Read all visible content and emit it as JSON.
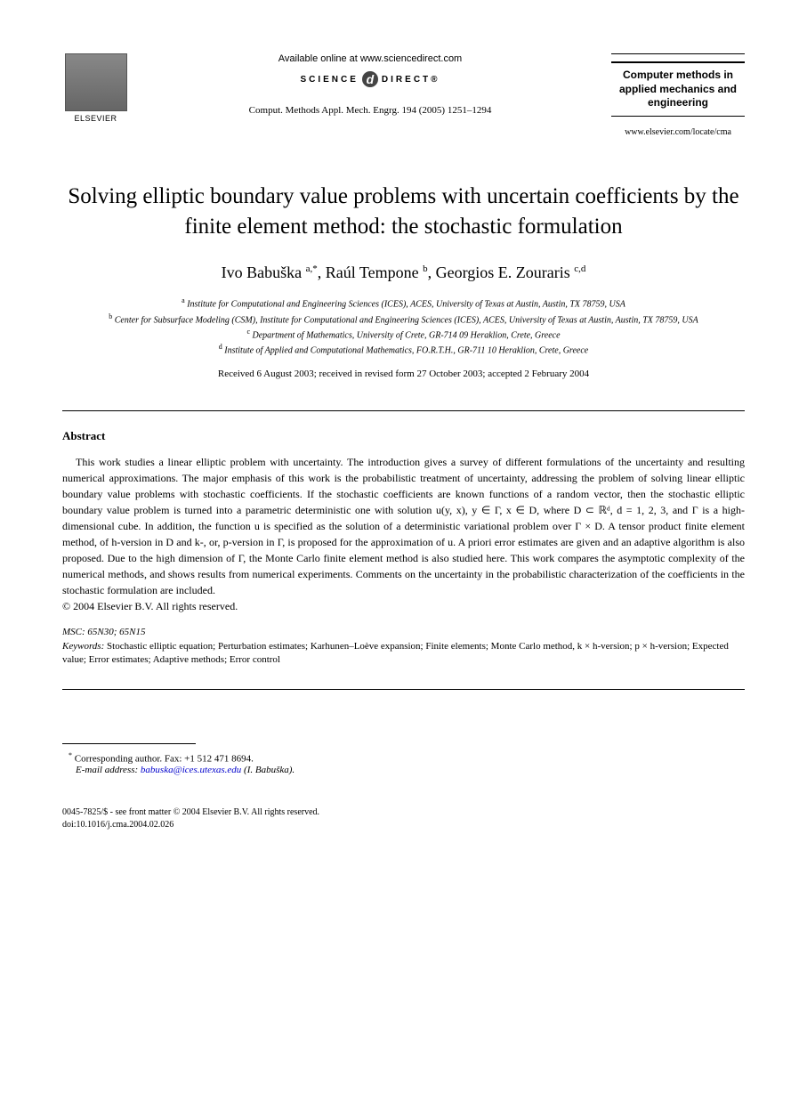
{
  "header": {
    "publisher": "ELSEVIER",
    "available": "Available online at www.sciencedirect.com",
    "sd_left": "SCIENCE",
    "sd_right": "DIRECT®",
    "citation": "Comput. Methods Appl. Mech. Engrg. 194 (2005) 1251–1294",
    "journal_name": "Computer methods in applied mechanics and engineering",
    "journal_url": "www.elsevier.com/locate/cma"
  },
  "title": "Solving elliptic boundary value problems with uncertain coefficients by the finite element method: the stochastic formulation",
  "authors_html": "Ivo Babuška <sup>a,*</sup>, Raúl Tempone <sup>b</sup>, Georgios E. Zouraris <sup>c,d</sup>",
  "affiliations": [
    "<sup>a</sup> Institute for Computational and Engineering Sciences (ICES), ACES, University of Texas at Austin, Austin, TX 78759, USA",
    "<sup>b</sup> Center for Subsurface Modeling (CSM), Institute for Computational and Engineering Sciences (ICES), ACES, University of Texas at Austin, Austin, TX 78759, USA",
    "<sup>c</sup> Department of Mathematics, University of Crete, GR-714 09 Heraklion, Crete, Greece",
    "<sup>d</sup> Institute of Applied and Computational Mathematics, FO.R.T.H., GR-711 10 Heraklion, Crete, Greece"
  ],
  "dates": "Received 6 August 2003; received in revised form 27 October 2003; accepted 2 February 2004",
  "abstract": {
    "heading": "Abstract",
    "body": "This work studies a linear elliptic problem with uncertainty. The introduction gives a survey of different formulations of the uncertainty and resulting numerical approximations. The major emphasis of this work is the probabilistic treatment of uncertainty, addressing the problem of solving linear elliptic boundary value problems with stochastic coefficients. If the stochastic coefficients are known functions of a random vector, then the stochastic elliptic boundary value problem is turned into a parametric deterministic one with solution u(y, x), y ∈ Γ, x ∈ D, where D ⊂ ℝᵈ, d = 1, 2, 3, and Γ is a high-dimensional cube. In addition, the function u is specified as the solution of a deterministic variational problem over Γ × D. A tensor product finite element method, of h-version in D and k-, or, p-version in Γ, is proposed for the approximation of u. A priori error estimates are given and an adaptive algorithm is also proposed. Due to the high dimension of Γ, the Monte Carlo finite element method is also studied here. This work compares the asymptotic complexity of the numerical methods, and shows results from numerical experiments. Comments on the uncertainty in the probabilistic characterization of the coefficients in the stochastic formulation are included.",
    "copyright": "© 2004 Elsevier B.V. All rights reserved."
  },
  "msc": {
    "label": "MSC:",
    "value": "65N30; 65N15"
  },
  "keywords": {
    "label": "Keywords:",
    "value": "Stochastic elliptic equation; Perturbation estimates; Karhunen–Loève expansion; Finite elements; Monte Carlo method, k × h-version; p × h-version; Expected value; Error estimates; Adaptive methods; Error control"
  },
  "corresponding": {
    "text": "Corresponding author. Fax: +1 512 471 8694.",
    "email_label": "E-mail address:",
    "email": "babuska@ices.utexas.edu",
    "email_name": "(I. Babuška)."
  },
  "footer": {
    "line1": "0045-7825/$ - see front matter © 2004 Elsevier B.V. All rights reserved.",
    "line2": "doi:10.1016/j.cma.2004.02.026"
  }
}
